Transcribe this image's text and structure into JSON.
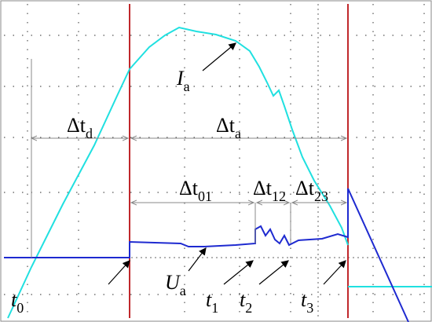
{
  "labels": {
    "dt_d": {
      "main": "Δt",
      "sub": "d"
    },
    "dt_a": {
      "main": "Δt",
      "sub": "a"
    },
    "dt_01": {
      "main": "Δt",
      "sub": "01"
    },
    "dt_12": {
      "main": "Δt",
      "sub": "12"
    },
    "dt_23": {
      "main": "Δt",
      "sub": "23"
    },
    "i_a": {
      "main": "I",
      "sub": "a"
    },
    "u_a": {
      "main": "U",
      "sub": "a"
    },
    "t_0": {
      "main": "t",
      "sub": "0"
    },
    "t_1": {
      "main": "t",
      "sub": "1"
    },
    "t_2": {
      "main": "t",
      "sub": "2"
    },
    "t_3": {
      "main": "t",
      "sub": "3"
    }
  }
}
